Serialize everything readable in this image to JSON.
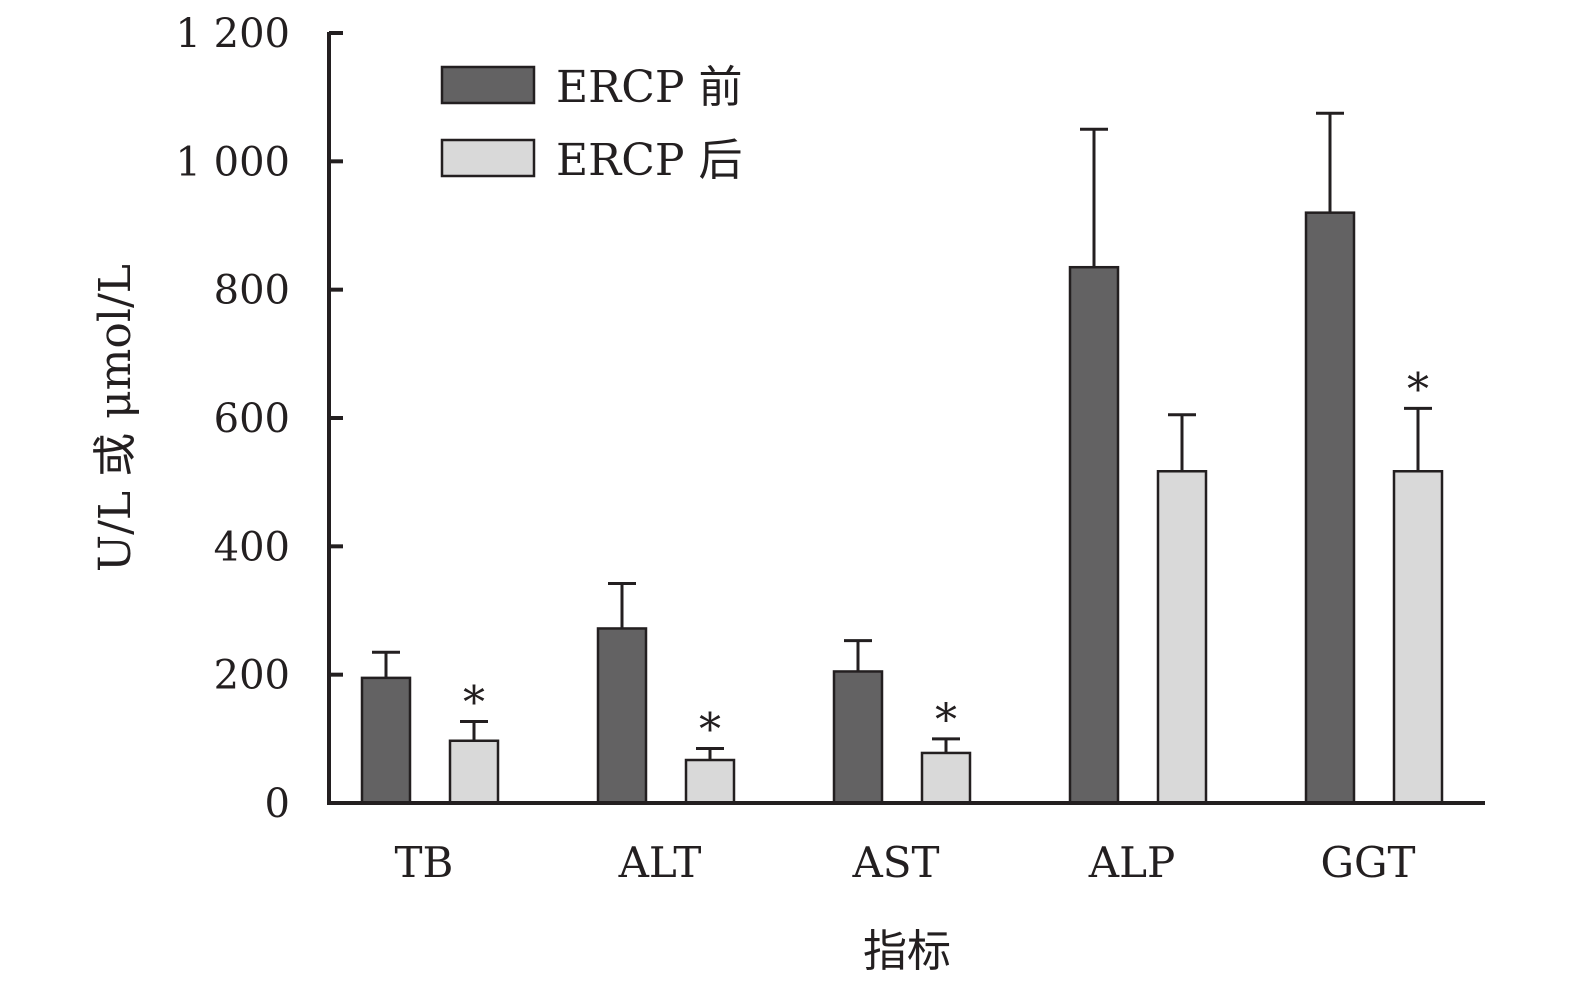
{
  "chart_data": {
    "type": "bar",
    "xlabel": "指标",
    "ylabel": "U/L 或 μmol/L",
    "ylim": [
      0,
      1200
    ],
    "yticks": [
      0,
      200,
      400,
      600,
      800,
      1000,
      1200
    ],
    "ytick_labels": [
      "0",
      "200",
      "400",
      "600",
      "800",
      "1 000",
      "1 200"
    ],
    "categories": [
      "TB",
      "ALT",
      "AST",
      "ALP",
      "GGT"
    ],
    "series": [
      {
        "name": "ERCP 前",
        "color": "#636263",
        "values": [
          195,
          272,
          205,
          835,
          920
        ],
        "errors": [
          40,
          70,
          48,
          215,
          155
        ],
        "significance": [
          "",
          "",
          "",
          "",
          ""
        ]
      },
      {
        "name": "ERCP 后",
        "color": "#d9d9d9",
        "values": [
          97,
          67,
          78,
          517,
          517
        ],
        "errors": [
          30,
          18,
          22,
          88,
          98
        ],
        "significance": [
          "*",
          "*",
          "*",
          "",
          "*"
        ]
      }
    ],
    "legend_position": "top-left",
    "grid": false
  }
}
